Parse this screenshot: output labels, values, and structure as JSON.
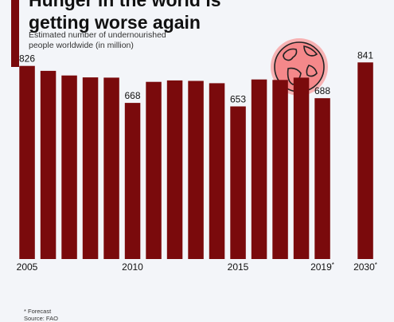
{
  "header": {
    "title_lines": [
      "Hunger in the world is",
      "getting worse again"
    ],
    "subtitle_lines": [
      "Estimated number of undernourished",
      "people worldwide (in million)"
    ]
  },
  "icon": "globe-icon",
  "colors": {
    "bar": "#7a0a0c",
    "accent": "#7a0a0c",
    "globe": "#f4888a",
    "background": "#f3f5f9"
  },
  "chart_data": {
    "type": "bar",
    "title": "Hunger in the world is getting worse again",
    "subtitle": "Estimated number of undernourished people worldwide (in million)",
    "categories": [
      "2005",
      "2006",
      "2007",
      "2008",
      "2009",
      "2010",
      "2011",
      "2012",
      "2013",
      "2014",
      "2015",
      "2016",
      "2017",
      "2018",
      "2019*",
      "2030*"
    ],
    "values": [
      826,
      805,
      785,
      777,
      776,
      668,
      758,
      764,
      762,
      752,
      653,
      768,
      766,
      776,
      688,
      841
    ],
    "tick_labels": [
      "2005",
      "2010",
      "2015",
      "2019*",
      "2030*"
    ],
    "labeled_values": {
      "2005": "826",
      "2010": "668",
      "2015": "653",
      "2019*": "688",
      "2030*": "841"
    },
    "ylim": [
      0,
      900
    ],
    "grid": false
  },
  "footnotes": {
    "forecast": "* Forecast",
    "source": "Source: FAO"
  }
}
